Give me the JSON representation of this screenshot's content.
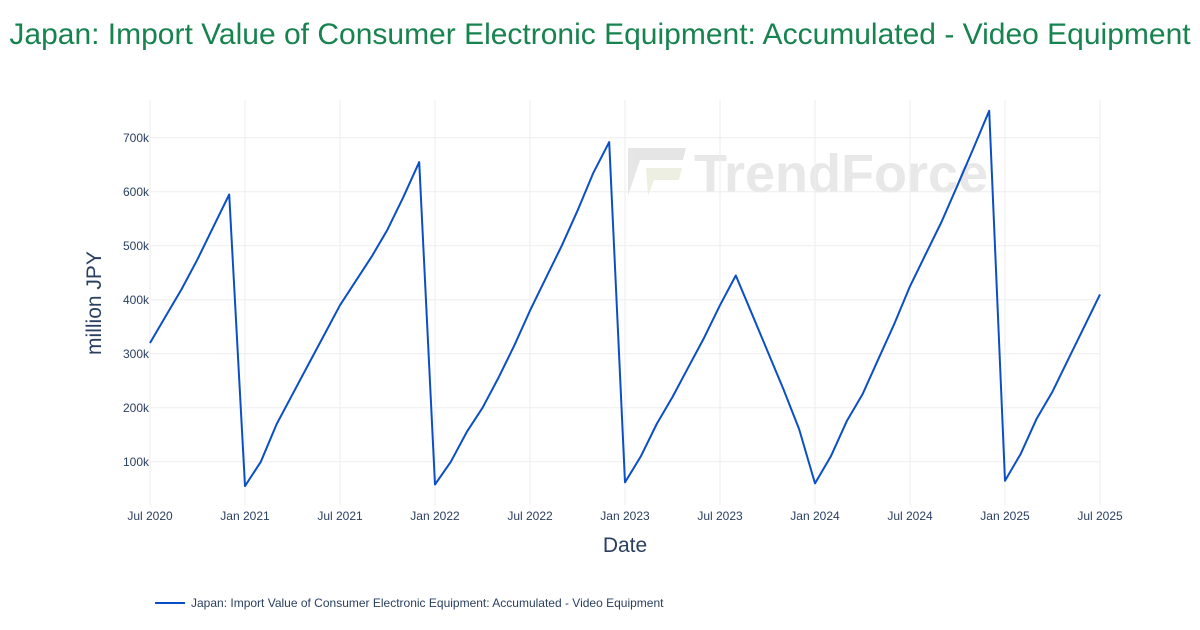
{
  "title": "Japan: Import Value of Consumer Electronic Equipment: Accumulated - Video Equipment",
  "watermark": "TrendForce",
  "colors": {
    "title": "#17834f",
    "line": "#0b4fc7",
    "grid": "#eeeeee",
    "text": "#2a3f5f"
  },
  "chart_data": {
    "type": "line",
    "xlabel": "Date",
    "ylabel": "million JPY",
    "x_ticks": [
      "Jul 2020",
      "Jan 2021",
      "Jul 2021",
      "Jan 2022",
      "Jul 2022",
      "Jan 2023",
      "Jul 2023",
      "Jan 2024",
      "Jul 2024",
      "Jan 2025",
      "Jul 2025"
    ],
    "x_range": [
      "2020-07",
      "2025-07"
    ],
    "y_ticks": [
      "100k",
      "200k",
      "300k",
      "400k",
      "500k",
      "600k",
      "700k"
    ],
    "y_tick_values": [
      100000,
      200000,
      300000,
      400000,
      500000,
      600000,
      700000
    ],
    "y_range": [
      20000,
      770000
    ],
    "grid": true,
    "legend_position": "bottom-left",
    "series": [
      {
        "name": "Japan: Import Value of Consumer Electronic Equipment: Accumulated - Video Equipment",
        "x": [
          "2020-07",
          "2020-08",
          "2020-09",
          "2020-10",
          "2020-11",
          "2020-12",
          "2021-01",
          "2021-02",
          "2021-03",
          "2021-04",
          "2021-05",
          "2021-06",
          "2021-07",
          "2021-08",
          "2021-09",
          "2021-10",
          "2021-11",
          "2021-12",
          "2022-01",
          "2022-02",
          "2022-03",
          "2022-04",
          "2022-05",
          "2022-06",
          "2022-07",
          "2022-08",
          "2022-09",
          "2022-10",
          "2022-11",
          "2022-12",
          "2023-01",
          "2023-02",
          "2023-03",
          "2023-04",
          "2023-05",
          "2023-06",
          "2023-07",
          "2023-08",
          "2023-09",
          "2023-10",
          "2023-11",
          "2023-12",
          "2024-01",
          "2024-02",
          "2024-03",
          "2024-04",
          "2024-05",
          "2024-06",
          "2024-07",
          "2024-08",
          "2024-09",
          "2024-10",
          "2024-11",
          "2024-12",
          "2025-01",
          "2025-02",
          "2025-03",
          "2025-04",
          "2025-05",
          "2025-06",
          "2025-07"
        ],
        "values": [
          320000,
          370000,
          420000,
          475000,
          535000,
          595000,
          55000,
          100000,
          170000,
          225000,
          280000,
          335000,
          390000,
          435000,
          480000,
          530000,
          590000,
          655000,
          58000,
          100000,
          155000,
          200000,
          255000,
          315000,
          380000,
          440000,
          500000,
          565000,
          635000,
          692000,
          62000,
          110000,
          170000,
          220000,
          275000,
          330000,
          390000,
          445000,
          375000,
          305000,
          235000,
          160000,
          60000,
          110000,
          175000,
          225000,
          290000,
          355000,
          425000,
          485000,
          545000,
          612000,
          680000,
          750000,
          65000,
          115000,
          180000,
          230000,
          290000,
          350000,
          410000
        ]
      }
    ]
  }
}
